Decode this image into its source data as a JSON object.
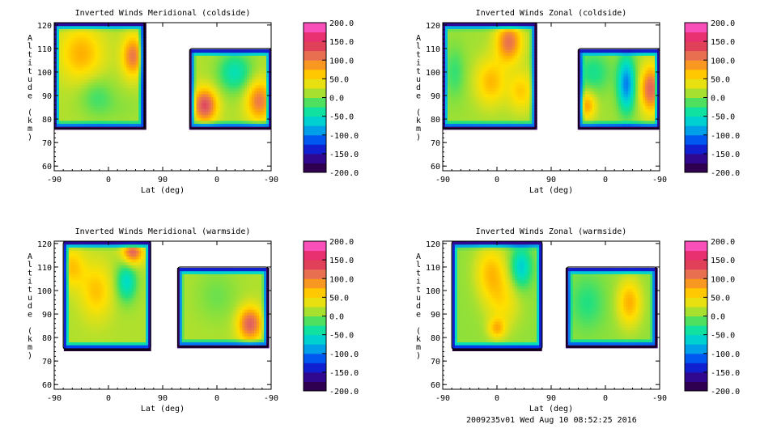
{
  "chart_data": [
    {
      "type": "heatmap",
      "title": "Inverted Winds Meridional (coldside)",
      "xlabel": "Lat (deg)",
      "ylabel": "Altitude (km)",
      "x_ticks": [
        "-90",
        "0",
        "90",
        "0",
        "-90"
      ],
      "y_ticks": [
        "60",
        "70",
        "80",
        "90",
        "100",
        "110",
        "120"
      ],
      "ylim": [
        58,
        121
      ],
      "colorbar": {
        "min": -200,
        "max": 200,
        "ticks": [
          "200.0",
          "150.0",
          "100.0",
          "50.0",
          "0.0",
          "-50.0",
          "-100.0",
          "-150.0",
          "-200.0"
        ]
      },
      "regions": [
        {
          "x": [
            -90,
            60
          ],
          "y": [
            76,
            121
          ]
        },
        {
          "x": [
            135,
            270
          ],
          "y": [
            76,
            110
          ]
        }
      ],
      "blobs": [
        {
          "x": -45,
          "y": 108,
          "value": 60,
          "sx": 25,
          "sy": 8
        },
        {
          "x": 40,
          "y": 107,
          "value": 90,
          "sx": 12,
          "sy": 6
        },
        {
          "x": -20,
          "y": 90,
          "value": -30,
          "sx": 20,
          "sy": 6
        },
        {
          "x": 160,
          "y": 86,
          "value": 120,
          "sx": 14,
          "sy": 5
        },
        {
          "x": 250,
          "y": 88,
          "value": 90,
          "sx": 15,
          "sy": 6
        },
        {
          "x": 210,
          "y": 100,
          "value": -60,
          "sx": 20,
          "sy": 6
        },
        {
          "x": 20,
          "y": 85,
          "value": -10,
          "sx": 30,
          "sy": 5
        }
      ],
      "base_value": 15
    },
    {
      "type": "heatmap",
      "title": "Inverted Winds Zonal (coldside)",
      "xlabel": "Lat (deg)",
      "ylabel": "Altitude (km)",
      "x_ticks": [
        "-90",
        "0",
        "90",
        "0",
        "-90"
      ],
      "y_ticks": [
        "60",
        "70",
        "80",
        "90",
        "100",
        "110",
        "120"
      ],
      "ylim": [
        58,
        121
      ],
      "colorbar": {
        "min": -200,
        "max": 200,
        "ticks": [
          "200.0",
          "150.0",
          "100.0",
          "50.0",
          "0.0",
          "-50.0",
          "-100.0",
          "-150.0",
          "-200.0"
        ]
      },
      "regions": [
        {
          "x": [
            -90,
            65
          ],
          "y": [
            76,
            121
          ]
        },
        {
          "x": [
            135,
            270
          ],
          "y": [
            76,
            110
          ]
        }
      ],
      "blobs": [
        {
          "x": 20,
          "y": 113,
          "value": 100,
          "sx": 15,
          "sy": 6
        },
        {
          "x": -10,
          "y": 96,
          "value": 60,
          "sx": 18,
          "sy": 7
        },
        {
          "x": 40,
          "y": 92,
          "value": 50,
          "sx": 15,
          "sy": 6
        },
        {
          "x": 255,
          "y": 93,
          "value": 110,
          "sx": 12,
          "sy": 7
        },
        {
          "x": 215,
          "y": 95,
          "value": -110,
          "sx": 10,
          "sy": 8
        },
        {
          "x": 160,
          "y": 100,
          "value": -40,
          "sx": 20,
          "sy": 6
        },
        {
          "x": 150,
          "y": 86,
          "value": 70,
          "sx": 10,
          "sy": 4
        },
        {
          "x": -70,
          "y": 100,
          "value": -30,
          "sx": 12,
          "sy": 8
        }
      ],
      "base_value": 10
    },
    {
      "type": "heatmap",
      "title": "Inverted Winds Meridional (warmside)",
      "xlabel": "Lat (deg)",
      "ylabel": "Altitude (km)",
      "x_ticks": [
        "-90",
        "0",
        "90",
        "0",
        "-90"
      ],
      "y_ticks": [
        "60",
        "70",
        "80",
        "90",
        "100",
        "110",
        "120"
      ],
      "ylim": [
        58,
        121
      ],
      "colorbar": {
        "min": -200,
        "max": 200,
        "ticks": [
          "200.0",
          "150.0",
          "100.0",
          "50.0",
          "0.0",
          "-50.0",
          "-100.0",
          "-150.0",
          "-200.0"
        ]
      },
      "regions": [
        {
          "x": [
            -75,
            70
          ],
          "y": [
            75,
            121
          ]
        },
        {
          "x": [
            115,
            265
          ],
          "y": [
            76,
            110
          ]
        }
      ],
      "blobs": [
        {
          "x": 40,
          "y": 117,
          "value": 110,
          "sx": 12,
          "sy": 4
        },
        {
          "x": -20,
          "y": 100,
          "value": 50,
          "sx": 18,
          "sy": 8
        },
        {
          "x": 30,
          "y": 104,
          "value": -70,
          "sx": 12,
          "sy": 6
        },
        {
          "x": 235,
          "y": 86,
          "value": 110,
          "sx": 14,
          "sy": 5
        },
        {
          "x": 180,
          "y": 98,
          "value": -20,
          "sx": 25,
          "sy": 8
        },
        {
          "x": -60,
          "y": 110,
          "value": 50,
          "sx": 15,
          "sy": 6
        }
      ],
      "base_value": 15
    },
    {
      "type": "heatmap",
      "title": "Inverted Winds Zonal (warmside)",
      "xlabel": "Lat (deg)",
      "ylabel": "Altitude (km)",
      "x_ticks": [
        "-90",
        "0",
        "90",
        "0",
        "-90"
      ],
      "y_ticks": [
        "60",
        "70",
        "80",
        "90",
        "100",
        "110",
        "120"
      ],
      "ylim": [
        58,
        121
      ],
      "colorbar": {
        "min": -200,
        "max": 200,
        "ticks": [
          "200.0",
          "150.0",
          "100.0",
          "50.0",
          "0.0",
          "-50.0",
          "-100.0",
          "-150.0",
          "-200.0"
        ]
      },
      "regions": [
        {
          "x": [
            -75,
            75
          ],
          "y": [
            75,
            121
          ]
        },
        {
          "x": [
            115,
            265
          ],
          "y": [
            76,
            110
          ]
        }
      ],
      "blobs": [
        {
          "x": -10,
          "y": 108,
          "value": 60,
          "sx": 18,
          "sy": 8
        },
        {
          "x": 10,
          "y": 95,
          "value": 40,
          "sx": 20,
          "sy": 8
        },
        {
          "x": 40,
          "y": 110,
          "value": -70,
          "sx": 12,
          "sy": 6
        },
        {
          "x": 220,
          "y": 95,
          "value": 70,
          "sx": 14,
          "sy": 7
        },
        {
          "x": 150,
          "y": 95,
          "value": -30,
          "sx": 20,
          "sy": 8
        },
        {
          "x": 0,
          "y": 84,
          "value": 60,
          "sx": 10,
          "sy": 3
        }
      ],
      "base_value": 5
    }
  ],
  "footer": "2009235v01 Wed Aug 10 08:52:25 2016"
}
